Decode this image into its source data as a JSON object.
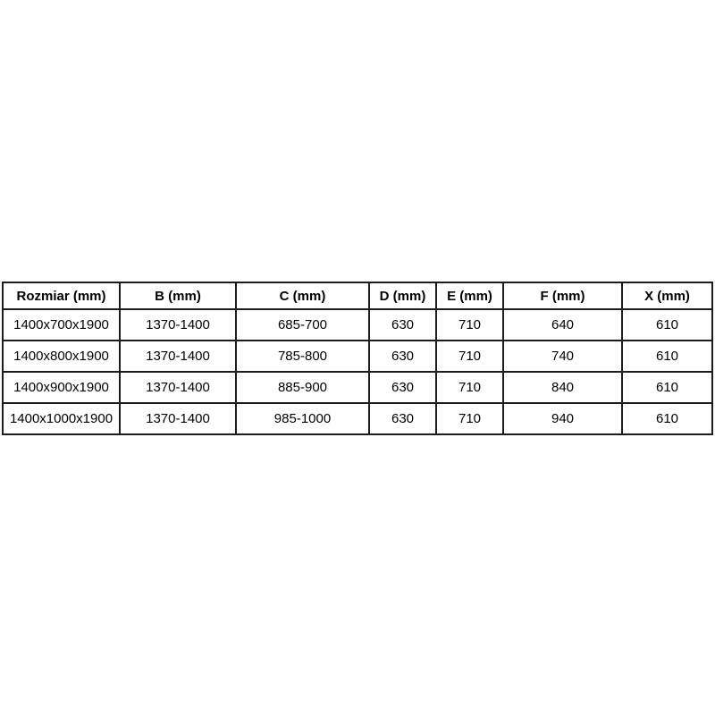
{
  "colors": {
    "background": "#ffffff",
    "border": "#1c1c1c",
    "text": "#000000"
  },
  "table": {
    "headers": [
      "Rozmiar (mm)",
      "B (mm)",
      "C (mm)",
      "D (mm)",
      "E (mm)",
      "F (mm)",
      "X (mm)"
    ],
    "rows": [
      [
        "1400x700x1900",
        "1370-1400",
        "685-700",
        "630",
        "710",
        "640",
        "610"
      ],
      [
        "1400x800x1900",
        "1370-1400",
        "785-800",
        "630",
        "710",
        "740",
        "610"
      ],
      [
        "1400x900x1900",
        "1370-1400",
        "885-900",
        "630",
        "710",
        "840",
        "610"
      ],
      [
        "1400x1000x1900",
        "1370-1400",
        "985-1000",
        "630",
        "710",
        "940",
        "610"
      ]
    ]
  }
}
